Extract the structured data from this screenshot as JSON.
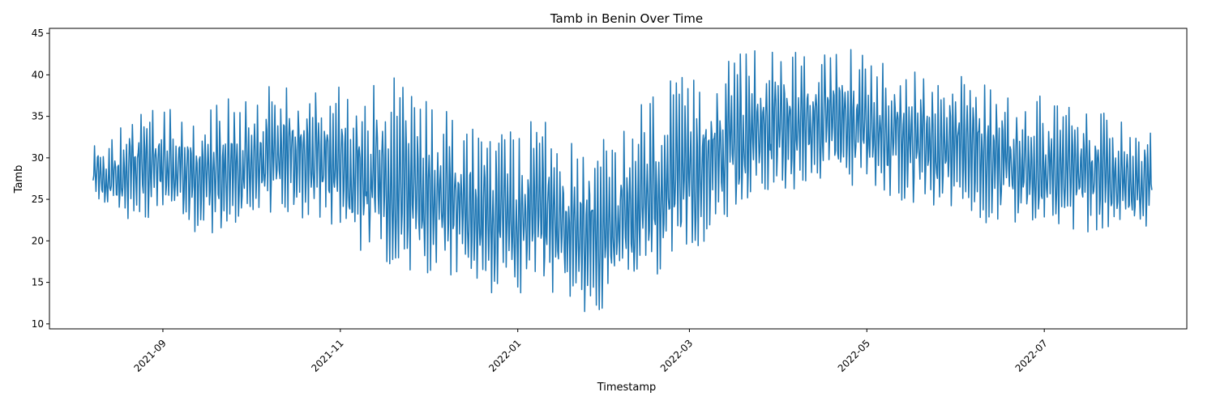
{
  "chart_data": {
    "type": "line",
    "title": "Tamb in Benin Over Time",
    "xlabel": "Timestamp",
    "ylabel": "Tamb",
    "xlim": [
      "2021-07-24",
      "2022-08-19"
    ],
    "ylim": [
      9.4,
      45.6
    ],
    "x_ticks": [
      "2021-09",
      "2021-11",
      "2022-01",
      "2022-03",
      "2022-05",
      "2022-07"
    ],
    "y_ticks": [
      10,
      15,
      20,
      25,
      30,
      35,
      40,
      45
    ],
    "grid": false,
    "legend": "none",
    "series_color": "#1f77b4",
    "series": [
      {
        "x": [
          "2021-08-08",
          "2021-08-15",
          "2021-08-22",
          "2021-08-29",
          "2021-09-05",
          "2021-09-12",
          "2021-09-19",
          "2021-09-26",
          "2021-10-03",
          "2021-10-10",
          "2021-10-17",
          "2021-10-24",
          "2021-10-31",
          "2021-11-07",
          "2021-11-14",
          "2021-11-21",
          "2021-11-28",
          "2021-12-05",
          "2021-12-12",
          "2021-12-19",
          "2021-12-26",
          "2022-01-02",
          "2022-01-09",
          "2022-01-16",
          "2022-01-23",
          "2022-01-30",
          "2022-02-06",
          "2022-02-13",
          "2022-02-20",
          "2022-02-27",
          "2022-03-06",
          "2022-03-13",
          "2022-03-20",
          "2022-03-27",
          "2022-04-03",
          "2022-04-10",
          "2022-04-17",
          "2022-04-24",
          "2022-05-01",
          "2022-05-08",
          "2022-05-15",
          "2022-05-22",
          "2022-05-29",
          "2022-06-05",
          "2022-06-12",
          "2022-06-19",
          "2022-06-26",
          "2022-07-03",
          "2022-07-10",
          "2022-07-17",
          "2022-07-24",
          "2022-07-31",
          "2022-08-07"
        ],
        "min": [
          24.3,
          22.5,
          22.0,
          22.8,
          22.3,
          21.0,
          20.6,
          21.5,
          23.0,
          23.5,
          22.8,
          22.0,
          20.5,
          19.0,
          18.0,
          16.5,
          15.5,
          15.0,
          14.5,
          14.0,
          13.5,
          13.0,
          12.5,
          12.0,
          11.5,
          11.0,
          13.0,
          14.5,
          15.5,
          17.0,
          19.0,
          22.0,
          24.0,
          25.5,
          26.0,
          26.5,
          26.5,
          26.0,
          26.5,
          25.5,
          24.5,
          24.0,
          24.0,
          23.0,
          22.0,
          22.0,
          21.5,
          21.0,
          21.2,
          21.0,
          21.5,
          21.0,
          22.0
        ],
        "max": [
          33.3,
          32.5,
          36.8,
          35.7,
          36.7,
          34.2,
          36.8,
          37.3,
          38.5,
          39.1,
          39.0,
          39.3,
          39.6,
          39.8,
          40.0,
          40.1,
          38.6,
          36.8,
          35.5,
          34.2,
          33.8,
          33.5,
          35.6,
          32.5,
          31.5,
          32.3,
          33.3,
          37.5,
          39.4,
          40.0,
          41.3,
          42.0,
          43.5,
          42.7,
          43.6,
          43.6,
          43.0,
          43.7,
          42.9,
          42.0,
          41.2,
          39.8,
          40.5,
          40.6,
          39.5,
          38.0,
          37.5,
          37.7,
          36.5,
          36.0,
          35.4,
          33.7,
          34.0
        ]
      }
    ]
  }
}
